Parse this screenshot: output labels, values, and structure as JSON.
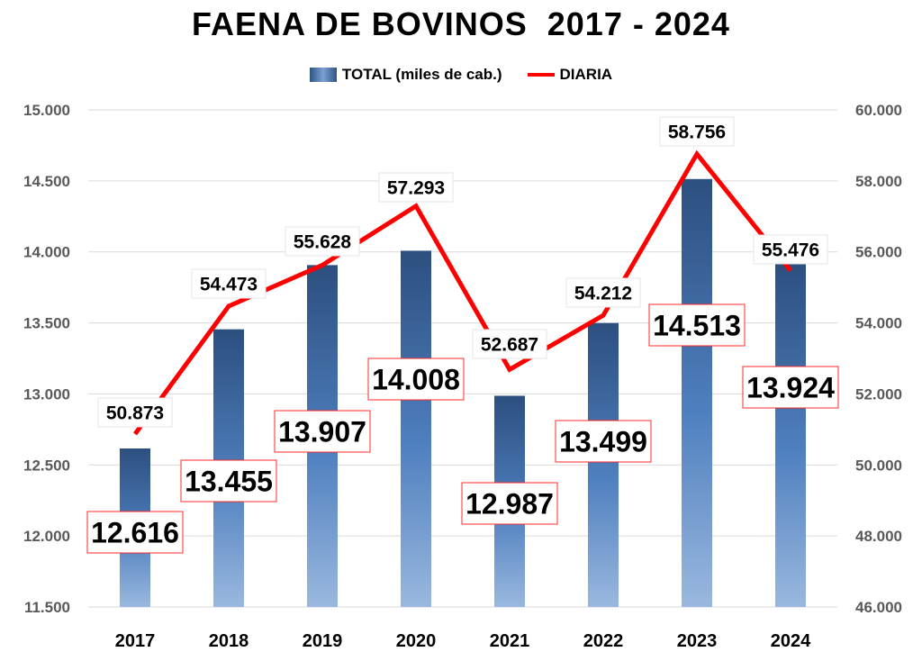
{
  "chart_data": {
    "type": "bar",
    "title": "FAENA DE BOVINOS  2017 - 2024",
    "categories": [
      "2017",
      "2018",
      "2019",
      "2020",
      "2021",
      "2022",
      "2023",
      "2024"
    ],
    "series": [
      {
        "name": "TOTAL (miles de cab.)",
        "type": "bar",
        "axis": "left",
        "values": [
          12616,
          13455,
          13907,
          14008,
          12987,
          13499,
          14513,
          13924
        ],
        "labels": [
          "12.616",
          "13.455",
          "13.907",
          "14.008",
          "12.987",
          "13.499",
          "14.513",
          "13.924"
        ],
        "color": "#2e5486"
      },
      {
        "name": "DIARIA",
        "type": "line",
        "axis": "right",
        "values": [
          50873,
          54473,
          55628,
          57293,
          52687,
          54212,
          58756,
          55476
        ],
        "labels": [
          "50.873",
          "54.473",
          "55.628",
          "57.293",
          "52.687",
          "54.212",
          "58.756",
          "55.476"
        ],
        "color": "#ff0000"
      }
    ],
    "y_left": {
      "range": [
        11500,
        15000
      ],
      "ticks": [
        "11.500",
        "12.000",
        "12.500",
        "13.000",
        "13.500",
        "14.000",
        "14.500",
        "15.000"
      ]
    },
    "y_right": {
      "range": [
        46000,
        60000
      ],
      "ticks": [
        "46.000",
        "48.000",
        "50.000",
        "52.000",
        "54.000",
        "56.000",
        "58.000",
        "60.000"
      ]
    },
    "grid": true,
    "legend_position": "top-center"
  }
}
